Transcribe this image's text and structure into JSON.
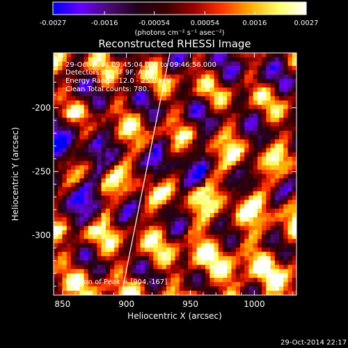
{
  "chart_data": {
    "type": "heatmap",
    "title": "Reconstructed RHESSI Image",
    "xlabel": "Heliocentric X (arcsec)",
    "ylabel": "Heliocentric Y (arcsec)",
    "xlim": [
      843,
      1033
    ],
    "ylim": [
      -347,
      -157
    ],
    "x_ticks": [
      850,
      900,
      950,
      1000
    ],
    "y_ticks": [
      -200,
      -250,
      -300
    ],
    "colorbar": {
      "label": "(photons cm⁻² s⁻¹ asec⁻²)",
      "ticks": [
        "-0.0027",
        "-0.0016",
        "-0.00054",
        "0.00054",
        "0.0016",
        "0.0027"
      ],
      "min": -0.0027,
      "max": 0.0027,
      "colors": [
        "#0000ff",
        "#6a00ff",
        "#4a0a70",
        "#200018",
        "#3a0000",
        "#9a0000",
        "#ff3300",
        "#ffaa00",
        "#ffff66",
        "#ffffff"
      ]
    },
    "annotations": [
      "29-Oct-2014 09:45:04.000 to 09:46:56.000",
      "Detectors: 3F 6F 9F, Att 0",
      "Energy Range: 12.0 - 25.0 keV",
      "Clean    Total counts: 780."
    ],
    "peak_label": "Position of Peak = [904,-167]",
    "limb": {
      "x": [
        934,
        896
      ],
      "y": [
        -157,
        -347
      ]
    },
    "grid": false
  },
  "timestamp": "29-Oct-2014 22:17"
}
